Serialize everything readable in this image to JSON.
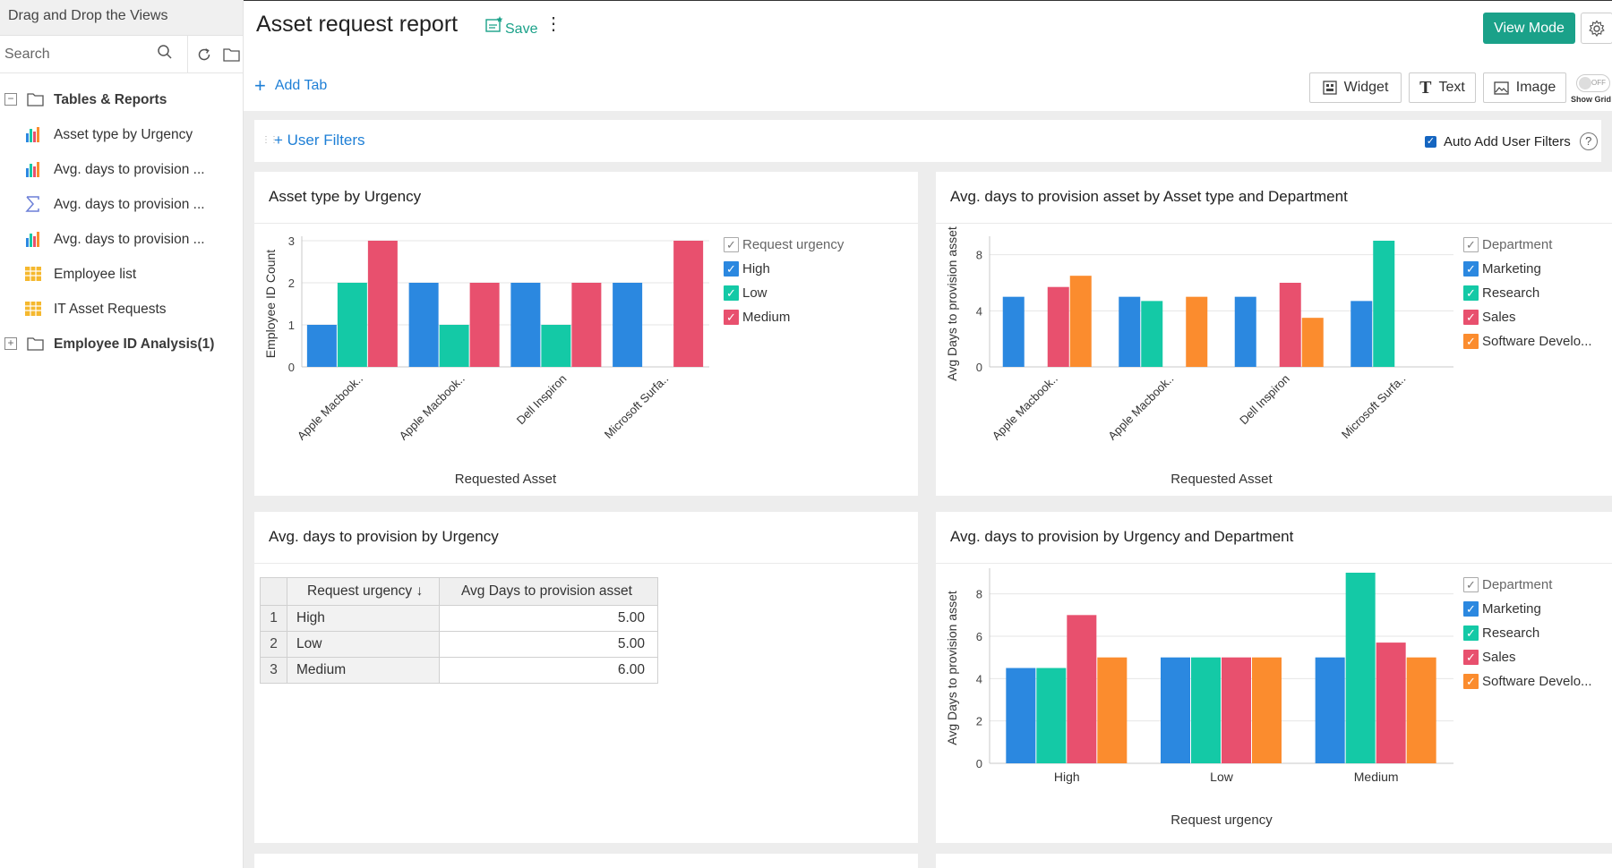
{
  "sidebar": {
    "title": "Drag and Drop the Views",
    "search_placeholder": "Search",
    "items": [
      {
        "label": "Tables & Reports",
        "kind": "folder",
        "expander": "−"
      },
      {
        "label": "Asset type by Urgency",
        "kind": "chart"
      },
      {
        "label": "Avg. days to provision ...",
        "kind": "chart"
      },
      {
        "label": "Avg. days to provision ...",
        "kind": "summary"
      },
      {
        "label": "Avg. days to provision ...",
        "kind": "chart"
      },
      {
        "label": "Employee list",
        "kind": "table"
      },
      {
        "label": "IT Asset Requests",
        "kind": "table"
      },
      {
        "label": "Employee ID Analysis(1)",
        "kind": "folder",
        "expander": "+"
      }
    ]
  },
  "header": {
    "title": "Asset request report",
    "save_label": "Save",
    "more_label": "⋮",
    "view_mode_label": "View Mode",
    "add_tab_label": "Add Tab",
    "tools": {
      "widget": "Widget",
      "text": "Text",
      "image": "Image"
    },
    "grid_toggle": {
      "state": "OFF",
      "label": "Show Grid"
    }
  },
  "filters": {
    "user_filters_label": "User Filters",
    "auto_add_label": "Auto Add User Filters",
    "auto_add_checked": true,
    "help": "?"
  },
  "colors": {
    "blue": "#2b88e0",
    "teal": "#14c9a6",
    "pink": "#e8506e",
    "orange": "#fb8c2e",
    "accent": "#1aa189",
    "link": "#1e7fd6"
  },
  "panels": [
    {
      "title": "Asset type by Urgency",
      "legend": {
        "title": "Request urgency",
        "items": [
          {
            "label": "High",
            "color": "#2b88e0"
          },
          {
            "label": "Low",
            "color": "#14c9a6"
          },
          {
            "label": "Medium",
            "color": "#e8506e"
          }
        ]
      }
    },
    {
      "title": "Avg. days to provision asset by Asset type and Department",
      "legend": {
        "title": "Department",
        "items": [
          {
            "label": "Marketing",
            "color": "#2b88e0"
          },
          {
            "label": "Research",
            "color": "#14c9a6"
          },
          {
            "label": "Sales",
            "color": "#e8506e"
          },
          {
            "label": "Software Develo...",
            "color": "#fb8c2e"
          }
        ]
      }
    },
    {
      "title": "Avg. days to provision by Urgency",
      "table": {
        "headers": [
          "Request urgency",
          "Avg Days to provision asset"
        ],
        "sort_icon": "↓",
        "rows": [
          {
            "n": "1",
            "urgency": "High",
            "value": "5.00"
          },
          {
            "n": "2",
            "urgency": "Low",
            "value": "5.00"
          },
          {
            "n": "3",
            "urgency": "Medium",
            "value": "6.00"
          }
        ]
      }
    },
    {
      "title": "Avg. days to provision by Urgency and Department",
      "legend": {
        "title": "Department",
        "items": [
          {
            "label": "Marketing",
            "color": "#2b88e0"
          },
          {
            "label": "Research",
            "color": "#14c9a6"
          },
          {
            "label": "Sales",
            "color": "#e8506e"
          },
          {
            "label": "Software Develo...",
            "color": "#fb8c2e"
          }
        ]
      }
    }
  ],
  "chart_data": [
    {
      "type": "bar",
      "title": "Asset type by Urgency",
      "xlabel": "Requested Asset",
      "ylabel": "Employee ID Count",
      "categories": [
        "Apple Macbook..",
        "Apple Macbook..",
        "Dell Inspiron",
        "Microsoft Surfa.."
      ],
      "series": [
        {
          "name": "High",
          "color": "#2b88e0",
          "values": [
            1,
            2,
            2,
            2
          ]
        },
        {
          "name": "Low",
          "color": "#14c9a6",
          "values": [
            2,
            1,
            1,
            null
          ]
        },
        {
          "name": "Medium",
          "color": "#e8506e",
          "values": [
            3,
            2,
            2,
            3
          ]
        }
      ],
      "ylim": [
        0,
        3
      ],
      "yticks": [
        0,
        1,
        2,
        3
      ],
      "grid": true,
      "legend": "right"
    },
    {
      "type": "bar",
      "title": "Avg. days to provision asset by Asset type and Department",
      "xlabel": "Requested Asset",
      "ylabel": "Avg Days to provision asset",
      "categories": [
        "Apple Macbook..",
        "Apple Macbook..",
        "Dell Inspiron",
        "Microsoft Surfa.."
      ],
      "series": [
        {
          "name": "Marketing",
          "color": "#2b88e0",
          "values": [
            5,
            5,
            5,
            4.7
          ]
        },
        {
          "name": "Research",
          "color": "#14c9a6",
          "values": [
            null,
            4.7,
            null,
            9
          ]
        },
        {
          "name": "Sales",
          "color": "#e8506e",
          "values": [
            5.7,
            null,
            6,
            null
          ]
        },
        {
          "name": "Software Develo...",
          "color": "#fb8c2e",
          "values": [
            6.5,
            5,
            3.5,
            null
          ]
        }
      ],
      "ylim": [
        0,
        9
      ],
      "yticks": [
        0,
        4,
        8
      ],
      "grid": true,
      "legend": "right"
    },
    {
      "type": "bar",
      "title": "Avg. days to provision by Urgency and Department",
      "xlabel": "Request urgency",
      "ylabel": "Avg Days to provision asset",
      "categories": [
        "High",
        "Low",
        "Medium"
      ],
      "series": [
        {
          "name": "Marketing",
          "color": "#2b88e0",
          "values": [
            4.5,
            5,
            5
          ]
        },
        {
          "name": "Research",
          "color": "#14c9a6",
          "values": [
            4.5,
            5,
            9
          ]
        },
        {
          "name": "Sales",
          "color": "#e8506e",
          "values": [
            7,
            5,
            5.7
          ]
        },
        {
          "name": "Software Develo...",
          "color": "#fb8c2e",
          "values": [
            5,
            5,
            5
          ]
        }
      ],
      "ylim": [
        0,
        9
      ],
      "yticks": [
        0,
        2,
        4,
        6,
        8
      ],
      "grid": true,
      "legend": "right"
    }
  ]
}
